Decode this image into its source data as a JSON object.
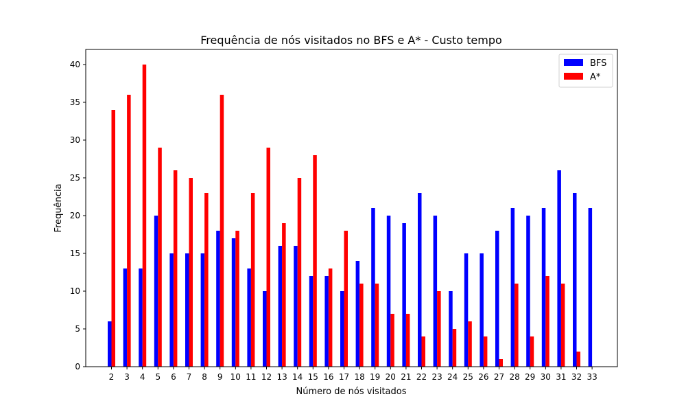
{
  "chart_data": {
    "type": "bar",
    "title": "Frequência de nós visitados no BFS e A* - Custo tempo",
    "xlabel": "Número de nós visitados",
    "ylabel": "Frequência",
    "categories": [
      "2",
      "3",
      "4",
      "5",
      "6",
      "7",
      "8",
      "9",
      "10",
      "11",
      "12",
      "13",
      "14",
      "15",
      "16",
      "17",
      "18",
      "19",
      "20",
      "21",
      "22",
      "23",
      "24",
      "25",
      "26",
      "27",
      "28",
      "29",
      "30",
      "31",
      "32",
      "33"
    ],
    "series": [
      {
        "name": "BFS",
        "color": "#0000ff",
        "values": [
          6,
          13,
          13,
          20,
          15,
          15,
          15,
          18,
          17,
          13,
          10,
          16,
          16,
          12,
          12,
          10,
          14,
          21,
          20,
          19,
          23,
          20,
          10,
          15,
          15,
          18,
          21,
          20,
          21,
          26,
          23,
          21
        ]
      },
      {
        "name": "A*",
        "color": "#ff0000",
        "values": [
          34,
          36,
          40,
          29,
          26,
          25,
          23,
          36,
          18,
          23,
          29,
          19,
          25,
          28,
          13,
          18,
          11,
          11,
          7,
          7,
          4,
          10,
          5,
          6,
          4,
          1,
          11,
          4,
          12,
          11,
          2,
          0
        ]
      }
    ],
    "ylim": [
      0,
      42
    ],
    "yticks": [
      0,
      5,
      10,
      15,
      20,
      25,
      30,
      35,
      40
    ],
    "grid": false,
    "legend_position": "top-right"
  }
}
